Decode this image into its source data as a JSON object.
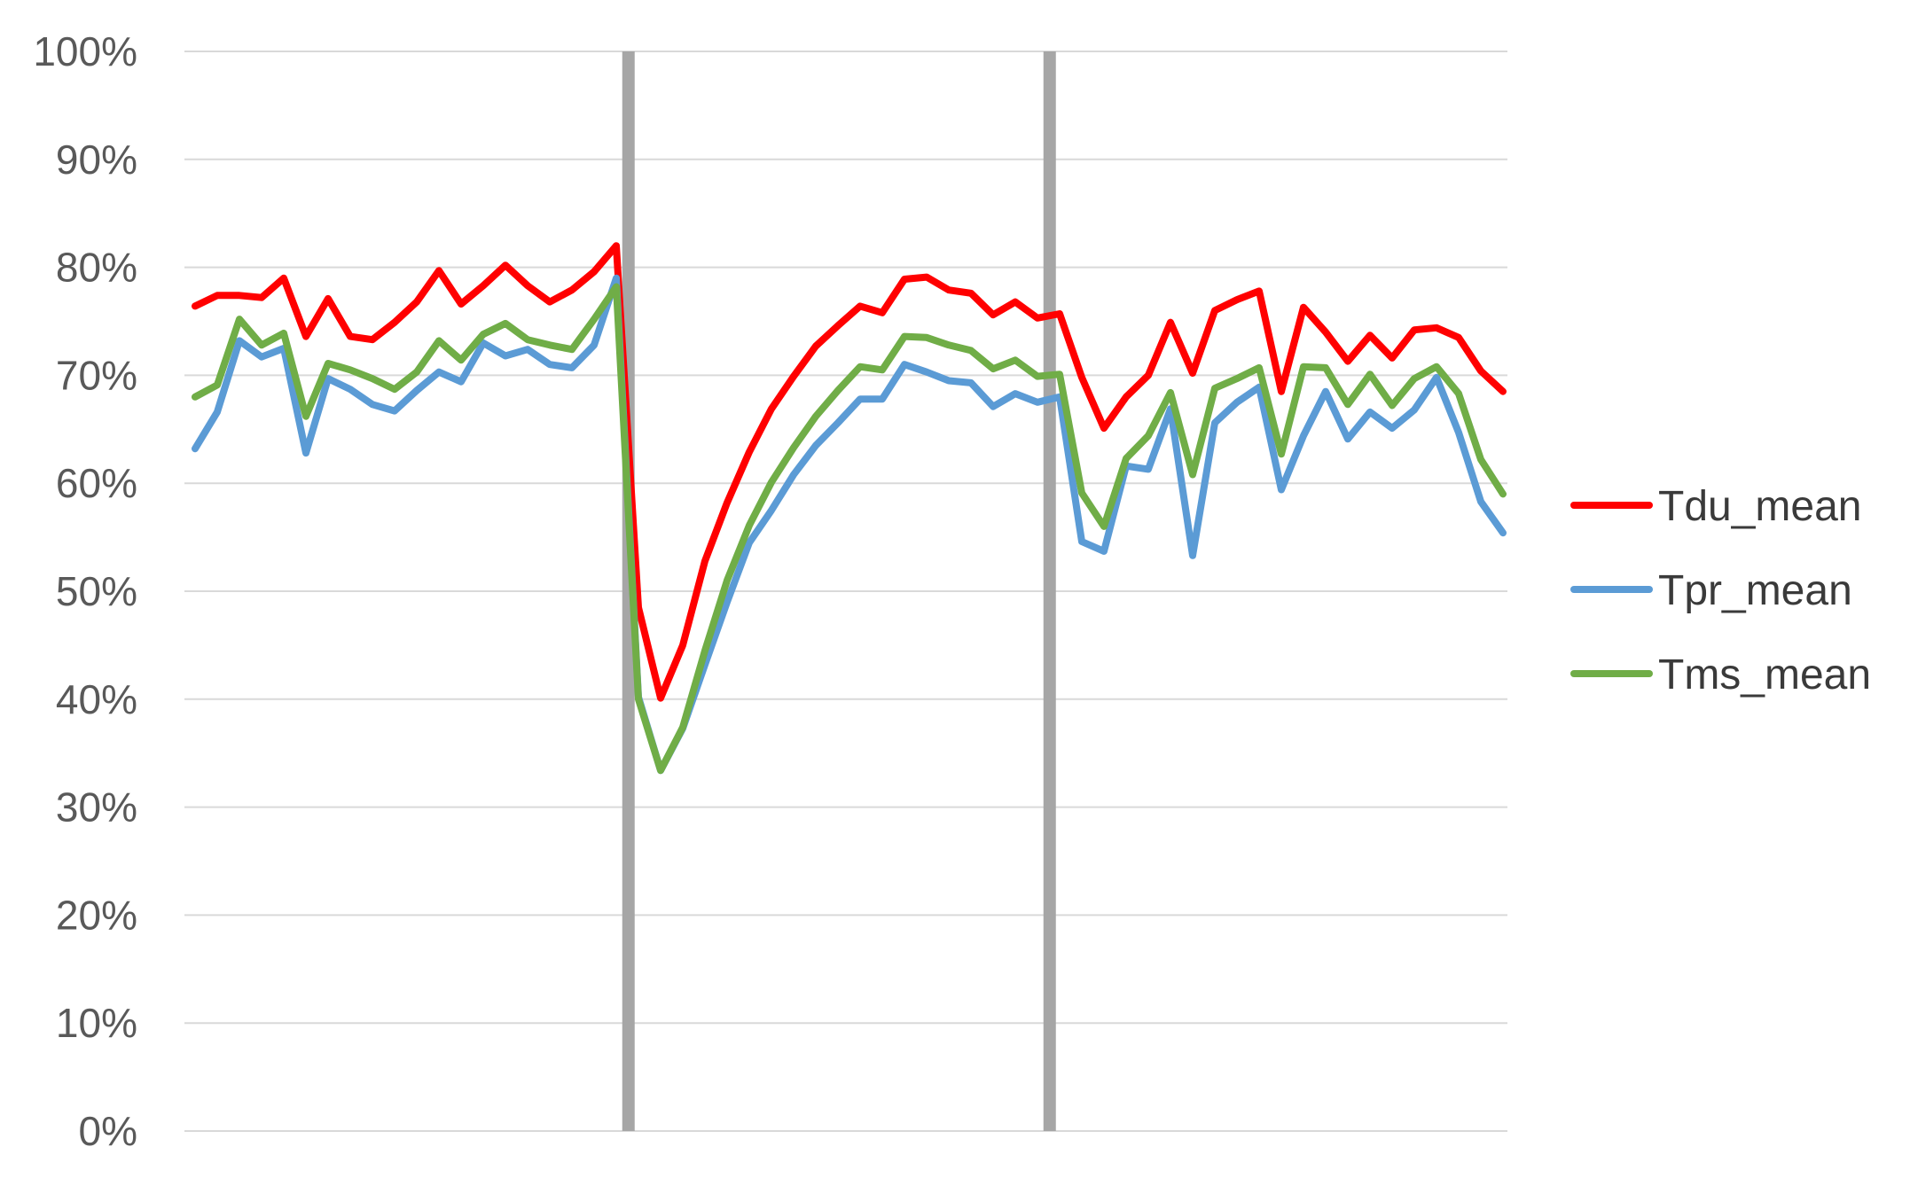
{
  "chart_data": {
    "type": "line",
    "title": "",
    "xlabel": "",
    "ylabel": "",
    "ylim": [
      0,
      100
    ],
    "y_ticks": [
      "0%",
      "10%",
      "20%",
      "30%",
      "40%",
      "50%",
      "60%",
      "70%",
      "80%",
      "90%",
      "100%"
    ],
    "grid": true,
    "legend_position": "right",
    "x_count": 60,
    "vertical_markers": [
      20,
      39
    ],
    "marker_color": "#a6a6a6",
    "grid_color": "#d9d9d9",
    "series": [
      {
        "name": "Tdu_mean",
        "color": "#ff0000",
        "values": [
          76.4,
          77.4,
          77.4,
          77.2,
          79.0,
          73.6,
          77.1,
          73.6,
          73.3,
          74.9,
          76.8,
          79.7,
          76.6,
          78.3,
          80.2,
          78.3,
          76.8,
          77.9,
          79.6,
          82.0,
          48.5,
          40.1,
          45.0,
          52.8,
          58.2,
          62.9,
          66.9,
          69.9,
          72.7,
          74.6,
          76.4,
          75.8,
          78.9,
          79.1,
          77.9,
          77.6,
          75.6,
          76.8,
          75.3,
          75.7,
          69.8,
          65.1,
          68.0,
          70.0,
          74.9,
          70.2,
          76.0,
          77.0,
          77.8,
          68.5,
          76.3,
          74.0,
          71.3,
          73.7,
          71.6,
          74.2,
          74.4,
          73.5,
          70.4,
          68.5
        ]
      },
      {
        "name": "Tpr_mean",
        "color": "#5b9bd5",
        "values": [
          63.2,
          66.6,
          73.2,
          71.7,
          72.5,
          62.8,
          69.7,
          68.7,
          67.3,
          66.7,
          68.6,
          70.3,
          69.4,
          73.0,
          71.8,
          72.4,
          71.0,
          70.7,
          72.8,
          79.0,
          40.2,
          33.4,
          37.3,
          43.2,
          49.0,
          54.5,
          57.5,
          60.8,
          63.5,
          65.6,
          67.8,
          67.8,
          71.0,
          70.3,
          69.5,
          69.3,
          67.1,
          68.3,
          67.5,
          68.0,
          54.6,
          53.7,
          61.6,
          61.3,
          66.9,
          53.3,
          65.6,
          67.5,
          68.9,
          59.4,
          64.4,
          68.5,
          64.1,
          66.6,
          65.1,
          66.8,
          69.8,
          64.7,
          58.3,
          55.4
        ]
      },
      {
        "name": "Tms_mean",
        "color": "#70ad47",
        "values": [
          68.0,
          69.1,
          75.2,
          72.8,
          73.9,
          66.2,
          71.1,
          70.5,
          69.7,
          68.7,
          70.3,
          73.2,
          71.4,
          73.8,
          74.8,
          73.3,
          72.8,
          72.4,
          75.2,
          78.2,
          40.0,
          33.4,
          37.4,
          44.5,
          51.0,
          56.1,
          60.1,
          63.3,
          66.2,
          68.6,
          70.8,
          70.5,
          73.6,
          73.5,
          72.8,
          72.3,
          70.6,
          71.4,
          69.9,
          70.1,
          59.1,
          56.0,
          62.3,
          64.4,
          68.4,
          60.8,
          68.8,
          69.7,
          70.7,
          62.7,
          70.8,
          70.7,
          67.3,
          70.1,
          67.2,
          69.7,
          70.8,
          68.3,
          62.2,
          59.0
        ]
      }
    ]
  }
}
